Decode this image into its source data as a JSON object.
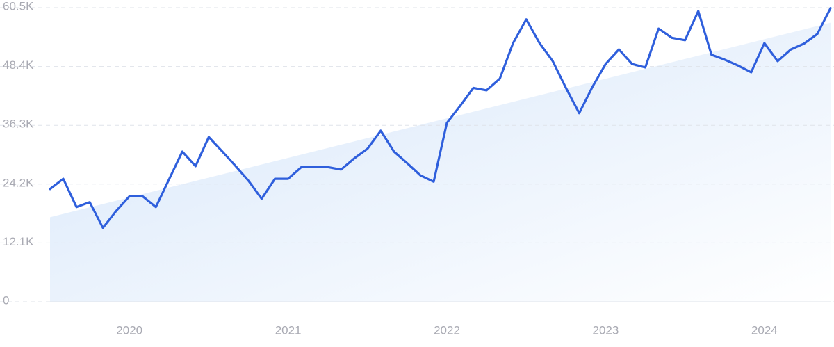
{
  "chart_data": {
    "type": "line",
    "categories": [
      null,
      null,
      null,
      null,
      null,
      null,
      "2020",
      null,
      null,
      null,
      null,
      null,
      null,
      null,
      null,
      null,
      null,
      null,
      "2021",
      null,
      null,
      null,
      null,
      null,
      null,
      null,
      null,
      null,
      null,
      null,
      "2022",
      null,
      null,
      null,
      null,
      null,
      null,
      null,
      null,
      null,
      null,
      null,
      "2023",
      null,
      null,
      null,
      null,
      null,
      null,
      null,
      null,
      null,
      null,
      null,
      "2024",
      null,
      null,
      null,
      null,
      null
    ],
    "series": [
      {
        "color": "#2f5fdc",
        "values": [
          23200,
          25300,
          19500,
          20500,
          15200,
          18700,
          21700,
          21700,
          19500,
          25200,
          30900,
          27900,
          33900,
          31000,
          28000,
          24900,
          21200,
          25300,
          25300,
          27700,
          27700,
          27700,
          27200,
          29500,
          31500,
          35200,
          30900,
          28500,
          26000,
          24700,
          36800,
          40300,
          44000,
          43500,
          45900,
          53200,
          58100,
          53200,
          49500,
          44000,
          38800,
          44200,
          48900,
          51900,
          48900,
          48200,
          56200,
          54300,
          53800,
          59800,
          50800,
          49800,
          48600,
          47200,
          53200,
          49500,
          51900,
          53100,
          55100,
          60400
        ]
      }
    ],
    "trend_values": [
      17400,
      57400
    ],
    "ylim": [
      0,
      60500
    ],
    "yticks": [
      0,
      {
        "value": 12100,
        "label": "12.1K"
      },
      {
        "value": 24200,
        "label": "24.2K"
      },
      {
        "value": 36300,
        "label": "36.3K"
      },
      {
        "value": 48400,
        "label": "48.4K"
      },
      {
        "value": 60500,
        "label": "60.5K"
      }
    ],
    "grid": true
  }
}
